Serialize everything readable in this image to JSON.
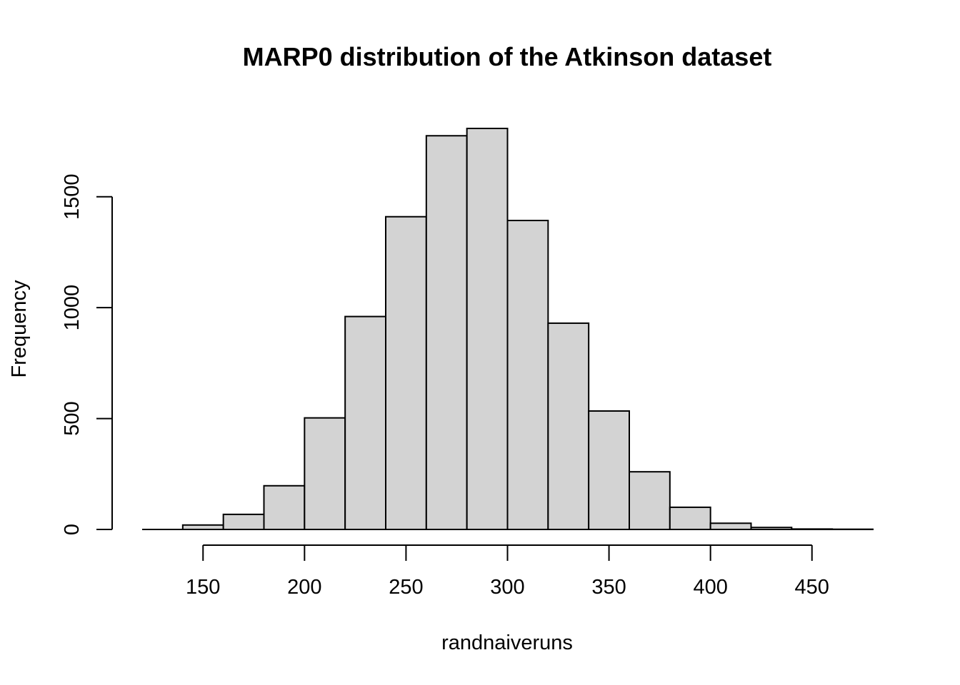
{
  "chart_data": {
    "type": "bar",
    "title": "MARP0 distribution of the Atkinson dataset",
    "xlabel": "randnaiveruns",
    "ylabel": "Frequency",
    "bin_edges": [
      120,
      140,
      160,
      180,
      200,
      220,
      240,
      260,
      280,
      300,
      320,
      340,
      360,
      380,
      400,
      420,
      440,
      460,
      480
    ],
    "values": [
      0,
      20,
      68,
      197,
      503,
      960,
      1410,
      1775,
      1808,
      1393,
      930,
      534,
      260,
      100,
      28,
      9,
      2,
      1
    ],
    "xlim": [
      120,
      480
    ],
    "ylim": [
      0,
      1808
    ],
    "x_ticks": [
      150,
      200,
      250,
      300,
      350,
      400,
      450
    ],
    "y_ticks": [
      0,
      500,
      1000,
      1500
    ],
    "grid": false
  }
}
